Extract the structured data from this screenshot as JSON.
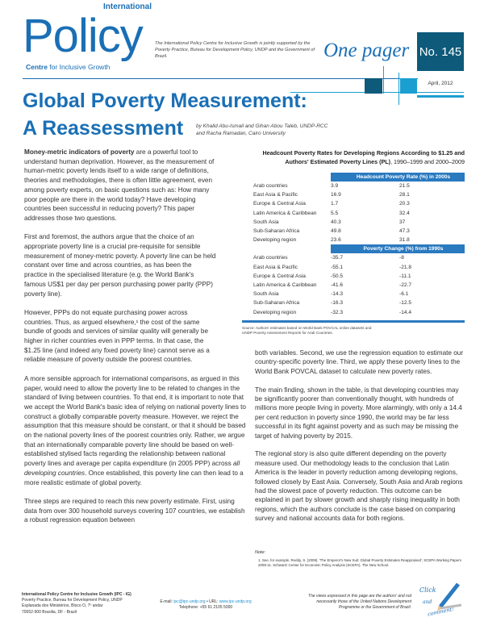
{
  "header": {
    "logo_policy": "Policy",
    "logo_international": "International",
    "logo_centre_bold": "Centre",
    "logo_centre_rest": " for Inclusive Growth",
    "support_text": "The International Policy Centre for Inclusive Growth is jointly supported by the Poverty Practice, Bureau for Development Policy, UNDP and the Government of Brazil.",
    "one_pager": "One pager",
    "number": "No. 145",
    "date": "April, 2012"
  },
  "title": {
    "line1": "Global Poverty Measurement:",
    "line2": "A Reassessment",
    "authors_line1": "by Khalid Abu-Ismail and Gihan Abou Taleb, UNDP-RCC",
    "authors_line2": "and Racha Ramadan, Cairo University"
  },
  "body": {
    "p1_bold": "Money-metric indicators of poverty",
    "p1": " are a powerful tool to understand human deprivation. However, as the measurement of human-metric poverty lends itself to a wide range of definitions, theories and methodologies, there is often little agreement, even among poverty experts, on basic questions such as: How many poor people are there in the world today? Have developing countries been successful in reducing poverty? This paper addresses those two questions.",
    "p2": "First and foremost, the authors argue that the choice of an appropriate poverty line is a crucial pre-requisite for sensible measurement of money-metric poverty. A poverty line can be held constant over time and across countries, as has been the practice in the specialised literature (e.g. the World Bank's famous US$1 per day per person purchasing power parity (PPP) poverty line).",
    "p3": "However, PPPs do not equate purchasing power across countries. Thus, as argued elsewhere,¹ the cost of the same bundle of goods and services of similar quality will generally be higher in richer countries even in PPP terms. In that case, the $1.25 line (and indeed any fixed poverty line) cannot serve as a reliable measure of poverty outside the poorest countries.",
    "p4a": "A more sensible approach for international comparisons, as argued in this paper, would need to allow the poverty line to be related to changes in the standard of living between countries. To that end, it is important to note that we accept the World Bank's basic idea of relying on national poverty lines to construct a globally comparable poverty measure. However, we reject the assumption that this measure should be constant, or that it should be based on the national poverty lines of the poorest countries only. Rather, we argue that an internationally comparable poverty line should be based on well-established stylised facts regarding the relationship between national poverty lines and average per capita expenditure (in 2005 PPP) across ",
    "p4_italic": "all developing countries",
    "p4b": ". Once established, this poverty line can then lead to a more realistic estimate of global poverty.",
    "p5": "Three steps are required to reach this new poverty estimate. First, using data from over 300 household surveys covering 107 countries, we establish a robust regression equation between",
    "r1": "both variables. Second, we use the regression equation to estimate our country-specific poverty line. Third, we apply these poverty lines to the World Bank POVCAL dataset to calculate new poverty rates.",
    "r2": "The main finding, shown in the table, is that developing countries may be significantly poorer than conventionally thought, with hundreds of millions more people living in poverty. More alarmingly, with only a 14.4 per cent reduction in poverty since 1990, the world may be far less successful in its fight against poverty and as such may be missing the target of halving poverty by 2015.",
    "r3": "The regional story is also quite different depending on the poverty measure used. Our methodology leads to the conclusion that Latin America is the leader in poverty reduction among developing regions, followed closely by East Asia. Conversely, South Asia and Arab regions had the slowest pace of poverty reduction. This outcome can be explained in part by slower growth and sharply rising inequality in both regions, which the authors conclude is the case based on comparing survey and national accounts data for both regions."
  },
  "table": {
    "title_bold": "Headcount Poverty Rates for Developing Regions According to $1.25 and Authors' Estimated Poverty Lines (PL)",
    "title_rest": ", 1990–1999 and 2000–2009",
    "header1": "Headcount Poverty Rate (%) in 2000s",
    "rows1": [
      [
        "Arab countries",
        "3.9",
        "21.5"
      ],
      [
        "East Asia & Pacific",
        "16.9",
        "28.1"
      ],
      [
        "Europe & Central Asia",
        "1.7",
        "20.3"
      ],
      [
        "Latin America & Caribbean",
        "5.5",
        "32.4"
      ],
      [
        "South Asia",
        "40.3",
        "37"
      ],
      [
        "Sub-Saharan Africa",
        "49.8",
        "47.3"
      ],
      [
        "Developing region",
        "23.6",
        "31.8"
      ]
    ],
    "header2": "Poverty Change (%) from 1990s",
    "rows2": [
      [
        "Arab countries",
        "-35.7",
        "-8"
      ],
      [
        "East Asia & Pacific",
        "-55.1",
        "-21.8"
      ],
      [
        "Europe & Central Asia",
        "-50.5",
        "-11.1"
      ],
      [
        "Latin America & Caribbean",
        "-41.6",
        "-22.7"
      ],
      [
        "South Asia",
        "-14.3",
        "-6.1"
      ],
      [
        "Sub-Saharan Africa",
        "-16.3",
        "-12.5"
      ],
      [
        "Developing region",
        "-32.3",
        "-14.4"
      ]
    ],
    "source_line1": "Source: Authors' estimates based on World Bank POVCAL online datasets and",
    "source_line2": "UNDP Poverty Assessment Reports for Arab Countries."
  },
  "note": {
    "label": "Note:",
    "text": "1. See, for example, Reddy, S. (2009). 'The Emperor's New Suit: Global Poverty Estimates Reappraised', SCEPA Working Papers 2009-11. Schwartz Center for Economic Policy Analysis (SCEPA). The New School."
  },
  "footer": {
    "org": "International Policy Centre for Inclusive Growth (IPC - IG)",
    "addr1": "Poverty Practice, Bureau for Development Policy, UNDP",
    "addr2": "Esplanada dos Ministérios, Bloco O, 7º andar",
    "addr3": "70052-900    Brasilia, DF - Brazil",
    "email_label": "E-mail: ",
    "email": "ipc@ipc-undp.org",
    "url_label": " • URL: ",
    "url": "www.ipc-undp.org",
    "phone": "Telephone:    +55 61 2105 5000",
    "disclaimer1": "The views expressed in this page are the authors' and not",
    "disclaimer2": "necessarily those of the United Nations Development",
    "disclaimer3": "Programme or the Government of Brazil.",
    "click1": "Click",
    "click2": "and",
    "click3": "comment!"
  },
  "colors": {
    "brand_blue": "#1a6fb5",
    "dark_teal": "#0d5a7a",
    "light_blue": "#1a9fd0"
  }
}
